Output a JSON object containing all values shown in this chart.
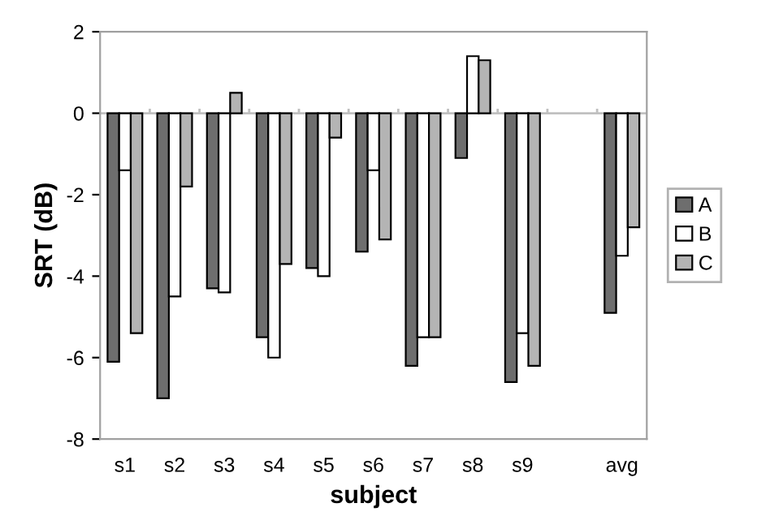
{
  "chart_data": {
    "type": "bar",
    "xlabel": "subject",
    "ylabel": "SRT (dB)",
    "categories": [
      "s1",
      "s2",
      "s3",
      "s4",
      "s5",
      "s6",
      "s7",
      "s8",
      "s9",
      null,
      "avg"
    ],
    "series": [
      {
        "name": "A",
        "color": "#6e6e6e",
        "values": [
          -6.1,
          -7.0,
          -4.3,
          -5.5,
          -3.8,
          -3.4,
          -6.2,
          -1.1,
          -6.6,
          null,
          -4.9
        ]
      },
      {
        "name": "B",
        "color": "#ffffff",
        "values": [
          -1.4,
          -4.5,
          -4.4,
          -6.0,
          -4.0,
          -1.4,
          -5.5,
          1.4,
          -5.4,
          null,
          -3.5
        ]
      },
      {
        "name": "C",
        "color": "#b4b4b4",
        "values": [
          -5.4,
          -1.8,
          0.5,
          -3.7,
          -0.6,
          -3.1,
          -5.5,
          1.3,
          -6.2,
          null,
          -2.8
        ]
      }
    ],
    "ylim": [
      -8,
      2
    ],
    "yticks": [
      -8,
      -6,
      -4,
      -2,
      0,
      2
    ],
    "ref_lines": [
      {
        "axis": "y",
        "value": 0,
        "color": "#c0c0c0"
      }
    ],
    "legend": "right"
  }
}
